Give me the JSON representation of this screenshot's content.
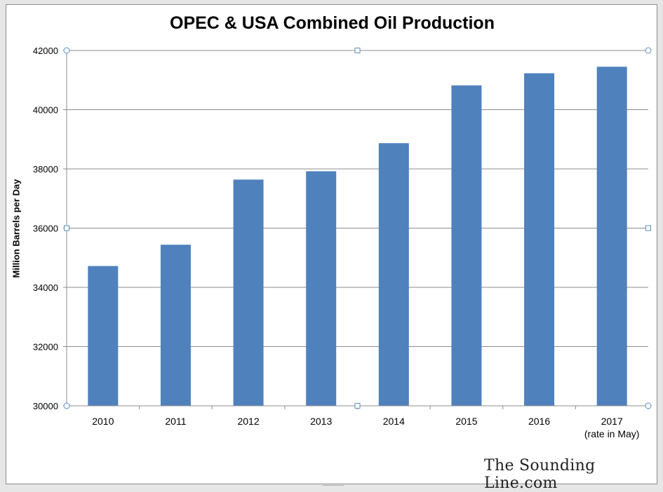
{
  "chart_data": {
    "type": "bar",
    "title": "OPEC & USA Combined Oil Production",
    "xlabel": "",
    "ylabel": "Million Barrels per Day",
    "ylim": [
      30000,
      42000
    ],
    "yticks": [
      "30000",
      "32000",
      "34000",
      "36000",
      "38000",
      "40000",
      "42000"
    ],
    "categories": [
      "2010",
      "2011",
      "2012",
      "2013",
      "2014",
      "2015",
      "2016",
      "2017"
    ],
    "category_sublabels": [
      "",
      "",
      "",
      "",
      "",
      "",
      "",
      "(rate in May)"
    ],
    "values": [
      34720,
      35440,
      37640,
      37920,
      38870,
      40820,
      41230,
      41450
    ],
    "bar_color": "#4f81bd",
    "grid": true,
    "legend": "none"
  },
  "watermark": "The Sounding Line.com"
}
